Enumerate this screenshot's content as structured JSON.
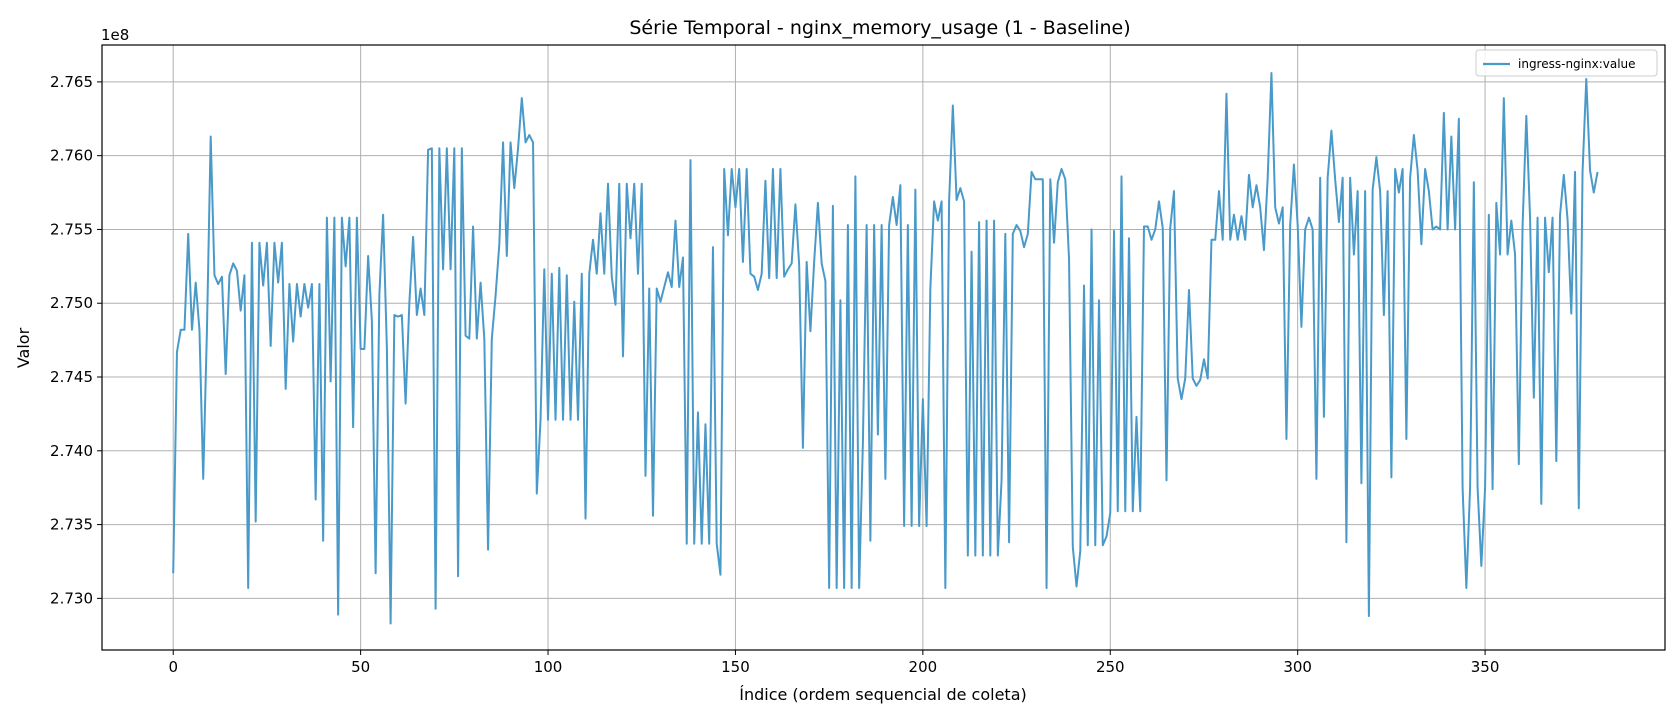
{
  "chart_data": {
    "type": "line",
    "title": "Série Temporal - nginx_memory_usage (1 - Baseline)",
    "xlabel": "Índice (ordem sequencial de coleta)",
    "ylabel": "Valor",
    "y_offset_label": "1e8",
    "y_scale": 100000000,
    "xlim": [
      -19,
      398
    ],
    "ylim": [
      2.7265,
      2.7675
    ],
    "x_ticks": [
      0,
      50,
      100,
      150,
      200,
      250,
      300,
      350
    ],
    "x_tick_labels": [
      "0",
      "50",
      "100",
      "150",
      "200",
      "250",
      "300",
      "350"
    ],
    "y_ticks": [
      2.73,
      2.735,
      2.74,
      2.745,
      2.75,
      2.755,
      2.76,
      2.765
    ],
    "y_tick_labels": [
      "2.730",
      "2.735",
      "2.740",
      "2.745",
      "2.750",
      "2.755",
      "2.760",
      "2.765"
    ],
    "grid": true,
    "legend_position": "top-right",
    "series": [
      {
        "name": "ingress-nginx:value",
        "color": "#4a9ac9",
        "x_start": 0,
        "values": [
          2.7317,
          2.7467,
          2.7482,
          2.7482,
          2.7547,
          2.7482,
          2.7514,
          2.7482,
          2.7381,
          2.7482,
          2.7613,
          2.7519,
          2.7513,
          2.7518,
          2.7452,
          2.7519,
          2.7527,
          2.7522,
          2.7495,
          2.7519,
          2.7307,
          2.7541,
          2.7352,
          2.7541,
          2.7512,
          2.7541,
          2.7471,
          2.7541,
          2.7514,
          2.7541,
          2.7442,
          2.7513,
          2.7474,
          2.7513,
          2.7491,
          2.7513,
          2.7497,
          2.7513,
          2.7367,
          2.7513,
          2.7339,
          2.7558,
          2.7447,
          2.7558,
          2.7289,
          2.7558,
          2.7525,
          2.7558,
          2.7416,
          2.7558,
          2.7469,
          2.7469,
          2.7532,
          2.7488,
          2.7317,
          2.7506,
          2.756,
          2.747,
          2.7283,
          2.7492,
          2.7491,
          2.7492,
          2.7432,
          2.75,
          2.7545,
          2.7492,
          2.751,
          2.7492,
          2.7604,
          2.7605,
          2.7293,
          2.7605,
          2.7523,
          2.7605,
          2.7523,
          2.7605,
          2.7315,
          2.7605,
          2.7478,
          2.7476,
          2.7552,
          2.7476,
          2.7514,
          2.7476,
          2.7333,
          2.7476,
          2.7505,
          2.754,
          2.7609,
          2.7532,
          2.7609,
          2.7578,
          2.7605,
          2.7639,
          2.7609,
          2.7614,
          2.7609,
          2.7371,
          2.7421,
          2.7523,
          2.7421,
          2.752,
          2.7421,
          2.7524,
          2.7421,
          2.7519,
          2.7421,
          2.7501,
          2.7421,
          2.752,
          2.7354,
          2.752,
          2.7543,
          2.752,
          2.7561,
          2.752,
          2.7581,
          2.7518,
          2.7499,
          2.7581,
          2.7464,
          2.7581,
          2.7544,
          2.7581,
          2.752,
          2.7581,
          2.7383,
          2.751,
          2.7356,
          2.751,
          2.7501,
          2.7511,
          2.7521,
          2.7511,
          2.7556,
          2.7511,
          2.7531,
          2.7337,
          2.7597,
          2.7337,
          2.7426,
          2.7337,
          2.7418,
          2.7337,
          2.7538,
          2.7337,
          2.7316,
          2.7591,
          2.7546,
          2.7591,
          2.7565,
          2.7591,
          2.7528,
          2.7591,
          2.752,
          2.7518,
          2.7509,
          2.752,
          2.7583,
          2.7517,
          2.7591,
          2.7517,
          2.7591,
          2.7518,
          2.7523,
          2.7527,
          2.7567,
          2.7526,
          2.7402,
          2.7528,
          2.7481,
          2.7528,
          2.7568,
          2.7527,
          2.7515,
          2.7307,
          2.7566,
          2.7307,
          2.7502,
          2.7307,
          2.7553,
          2.7307,
          2.7586,
          2.7307,
          2.7405,
          2.7553,
          2.7339,
          2.7553,
          2.7411,
          2.7553,
          2.7381,
          2.7553,
          2.7572,
          2.7553,
          2.758,
          2.7349,
          2.7553,
          2.7349,
          2.7577,
          2.7349,
          2.7435,
          2.7349,
          2.751,
          2.7569,
          2.7556,
          2.7569,
          2.7307,
          2.7569,
          2.7634,
          2.757,
          2.7578,
          2.7569,
          2.7329,
          2.7535,
          2.7329,
          2.7555,
          2.7329,
          2.7556,
          2.7329,
          2.7556,
          2.7329,
          2.738,
          2.7547,
          2.7338,
          2.7547,
          2.7553,
          2.7549,
          2.7538,
          2.7547,
          2.7589,
          2.7584,
          2.7584,
          2.7584,
          2.7307,
          2.7584,
          2.7541,
          2.7582,
          2.7591,
          2.7584,
          2.753,
          2.7335,
          2.7308,
          2.7332,
          2.7512,
          2.7336,
          2.755,
          2.7336,
          2.7502,
          2.7336,
          2.7342,
          2.7358,
          2.7549,
          2.7359,
          2.7586,
          2.7359,
          2.7544,
          2.7359,
          2.7423,
          2.7359,
          2.7552,
          2.7552,
          2.7543,
          2.755,
          2.7569,
          2.7551,
          2.738,
          2.7551,
          2.7576,
          2.7449,
          2.7435,
          2.7449,
          2.7509,
          2.7449,
          2.7444,
          2.7448,
          2.7462,
          2.7449,
          2.7543,
          2.7543,
          2.7576,
          2.7543,
          2.7642,
          2.7543,
          2.756,
          2.7543,
          2.7559,
          2.7543,
          2.7587,
          2.7565,
          2.758,
          2.7565,
          2.7536,
          2.7585,
          2.7656,
          2.7565,
          2.7554,
          2.7565,
          2.7408,
          2.7553,
          2.7594,
          2.7553,
          2.7484,
          2.755,
          2.7558,
          2.755,
          2.7381,
          2.7585,
          2.7423,
          2.7585,
          2.7617,
          2.7584,
          2.7555,
          2.7585,
          2.7338,
          2.7585,
          2.7533,
          2.7576,
          2.7378,
          2.7576,
          2.7288,
          2.7577,
          2.7599,
          2.7576,
          2.7492,
          2.7576,
          2.7382,
          2.7591,
          2.7575,
          2.7591,
          2.7408,
          2.7585,
          2.7614,
          2.759,
          2.754,
          2.7591,
          2.7576,
          2.755,
          2.7552,
          2.755,
          2.7629,
          2.755,
          2.7613,
          2.755,
          2.7625,
          2.7375,
          2.7307,
          2.7375,
          2.7582,
          2.7375,
          2.7322,
          2.7375,
          2.756,
          2.7374,
          2.7568,
          2.7533,
          2.7639,
          2.7533,
          2.7556,
          2.7533,
          2.7391,
          2.7552,
          2.7627,
          2.7558,
          2.7436,
          2.7558,
          2.7364,
          2.7558,
          2.7521,
          2.7558,
          2.7393,
          2.756,
          2.7587,
          2.7557,
          2.7493,
          2.7589,
          2.7361,
          2.7589,
          2.7652,
          2.759,
          2.7575,
          2.7589
        ]
      }
    ]
  }
}
